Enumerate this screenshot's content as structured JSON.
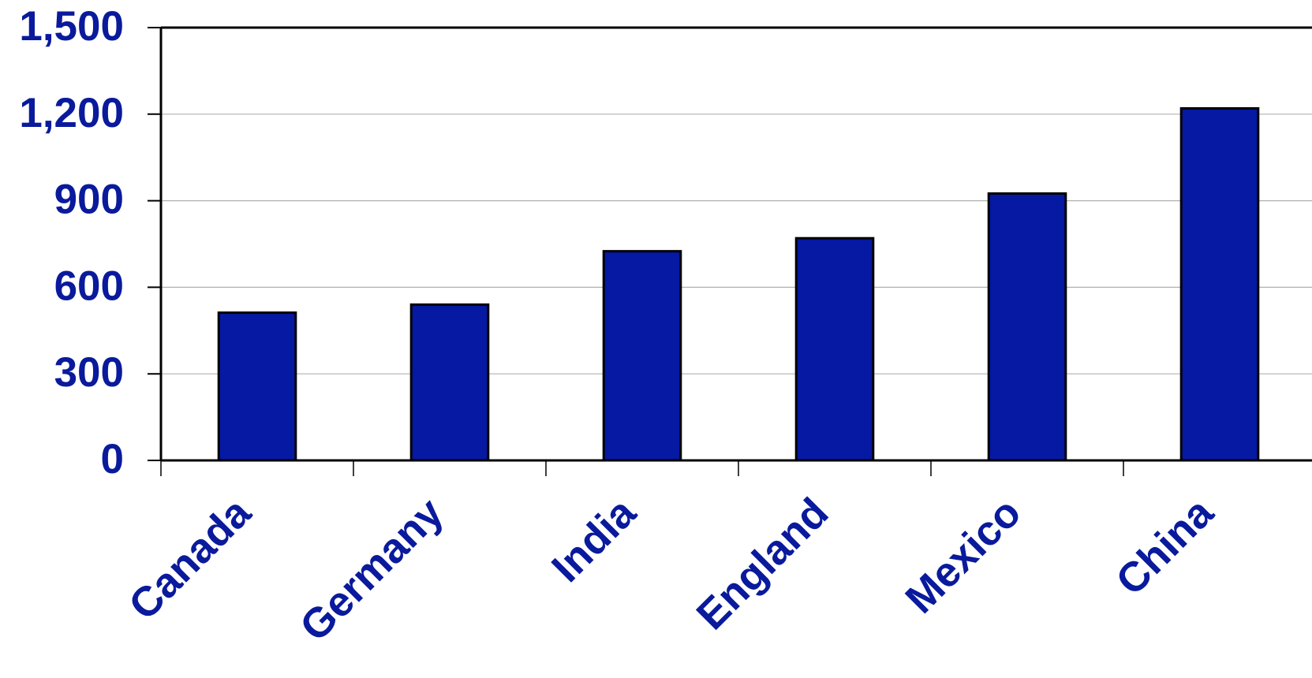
{
  "chart_data": {
    "type": "bar",
    "categories": [
      "Canada",
      "Germany",
      "India",
      "England",
      "Mexico",
      "China"
    ],
    "values": [
      512,
      540,
      725,
      770,
      925,
      1220
    ],
    "color": "#0519a3",
    "ylim": [
      0,
      1500
    ],
    "yticks": [
      0,
      300,
      600,
      900,
      {
        "value": 1200,
        "label": "1,200"
      },
      {
        "value": 1500,
        "label": "1,500"
      }
    ],
    "grid": true
  }
}
